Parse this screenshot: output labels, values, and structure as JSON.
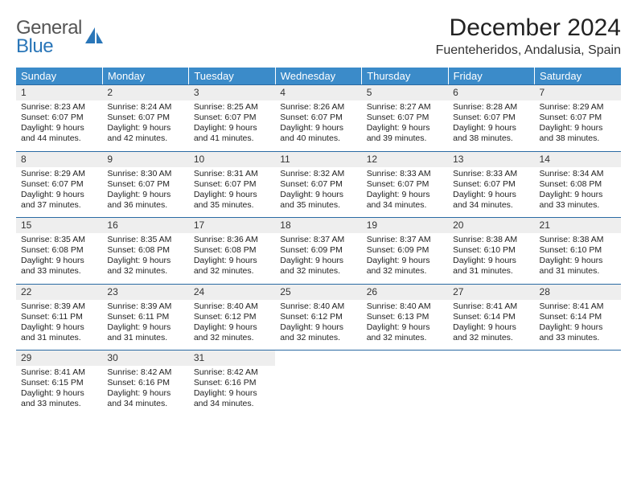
{
  "brand": {
    "line1": "General",
    "line2": "Blue"
  },
  "title": "December 2024",
  "location": "Fuenteheridos, Andalusia, Spain",
  "colors": {
    "headerbg": "#3b8bc9",
    "border": "#2a6aa3",
    "daynum_bg": "#eeeeee"
  },
  "weekdays": [
    "Sunday",
    "Monday",
    "Tuesday",
    "Wednesday",
    "Thursday",
    "Friday",
    "Saturday"
  ],
  "weeks": [
    [
      {
        "n": "1",
        "sr": "8:23 AM",
        "ss": "6:07 PM",
        "dl": "9 hours and 44 minutes."
      },
      {
        "n": "2",
        "sr": "8:24 AM",
        "ss": "6:07 PM",
        "dl": "9 hours and 42 minutes."
      },
      {
        "n": "3",
        "sr": "8:25 AM",
        "ss": "6:07 PM",
        "dl": "9 hours and 41 minutes."
      },
      {
        "n": "4",
        "sr": "8:26 AM",
        "ss": "6:07 PM",
        "dl": "9 hours and 40 minutes."
      },
      {
        "n": "5",
        "sr": "8:27 AM",
        "ss": "6:07 PM",
        "dl": "9 hours and 39 minutes."
      },
      {
        "n": "6",
        "sr": "8:28 AM",
        "ss": "6:07 PM",
        "dl": "9 hours and 38 minutes."
      },
      {
        "n": "7",
        "sr": "8:29 AM",
        "ss": "6:07 PM",
        "dl": "9 hours and 38 minutes."
      }
    ],
    [
      {
        "n": "8",
        "sr": "8:29 AM",
        "ss": "6:07 PM",
        "dl": "9 hours and 37 minutes."
      },
      {
        "n": "9",
        "sr": "8:30 AM",
        "ss": "6:07 PM",
        "dl": "9 hours and 36 minutes."
      },
      {
        "n": "10",
        "sr": "8:31 AM",
        "ss": "6:07 PM",
        "dl": "9 hours and 35 minutes."
      },
      {
        "n": "11",
        "sr": "8:32 AM",
        "ss": "6:07 PM",
        "dl": "9 hours and 35 minutes."
      },
      {
        "n": "12",
        "sr": "8:33 AM",
        "ss": "6:07 PM",
        "dl": "9 hours and 34 minutes."
      },
      {
        "n": "13",
        "sr": "8:33 AM",
        "ss": "6:07 PM",
        "dl": "9 hours and 34 minutes."
      },
      {
        "n": "14",
        "sr": "8:34 AM",
        "ss": "6:08 PM",
        "dl": "9 hours and 33 minutes."
      }
    ],
    [
      {
        "n": "15",
        "sr": "8:35 AM",
        "ss": "6:08 PM",
        "dl": "9 hours and 33 minutes."
      },
      {
        "n": "16",
        "sr": "8:35 AM",
        "ss": "6:08 PM",
        "dl": "9 hours and 32 minutes."
      },
      {
        "n": "17",
        "sr": "8:36 AM",
        "ss": "6:08 PM",
        "dl": "9 hours and 32 minutes."
      },
      {
        "n": "18",
        "sr": "8:37 AM",
        "ss": "6:09 PM",
        "dl": "9 hours and 32 minutes."
      },
      {
        "n": "19",
        "sr": "8:37 AM",
        "ss": "6:09 PM",
        "dl": "9 hours and 32 minutes."
      },
      {
        "n": "20",
        "sr": "8:38 AM",
        "ss": "6:10 PM",
        "dl": "9 hours and 31 minutes."
      },
      {
        "n": "21",
        "sr": "8:38 AM",
        "ss": "6:10 PM",
        "dl": "9 hours and 31 minutes."
      }
    ],
    [
      {
        "n": "22",
        "sr": "8:39 AM",
        "ss": "6:11 PM",
        "dl": "9 hours and 31 minutes."
      },
      {
        "n": "23",
        "sr": "8:39 AM",
        "ss": "6:11 PM",
        "dl": "9 hours and 31 minutes."
      },
      {
        "n": "24",
        "sr": "8:40 AM",
        "ss": "6:12 PM",
        "dl": "9 hours and 32 minutes."
      },
      {
        "n": "25",
        "sr": "8:40 AM",
        "ss": "6:12 PM",
        "dl": "9 hours and 32 minutes."
      },
      {
        "n": "26",
        "sr": "8:40 AM",
        "ss": "6:13 PM",
        "dl": "9 hours and 32 minutes."
      },
      {
        "n": "27",
        "sr": "8:41 AM",
        "ss": "6:14 PM",
        "dl": "9 hours and 32 minutes."
      },
      {
        "n": "28",
        "sr": "8:41 AM",
        "ss": "6:14 PM",
        "dl": "9 hours and 33 minutes."
      }
    ],
    [
      {
        "n": "29",
        "sr": "8:41 AM",
        "ss": "6:15 PM",
        "dl": "9 hours and 33 minutes."
      },
      {
        "n": "30",
        "sr": "8:42 AM",
        "ss": "6:16 PM",
        "dl": "9 hours and 34 minutes."
      },
      {
        "n": "31",
        "sr": "8:42 AM",
        "ss": "6:16 PM",
        "dl": "9 hours and 34 minutes."
      },
      {
        "empty": true
      },
      {
        "empty": true
      },
      {
        "empty": true
      },
      {
        "empty": true
      }
    ]
  ],
  "labels": {
    "sunrise": "Sunrise:",
    "sunset": "Sunset:",
    "daylight": "Daylight:"
  }
}
